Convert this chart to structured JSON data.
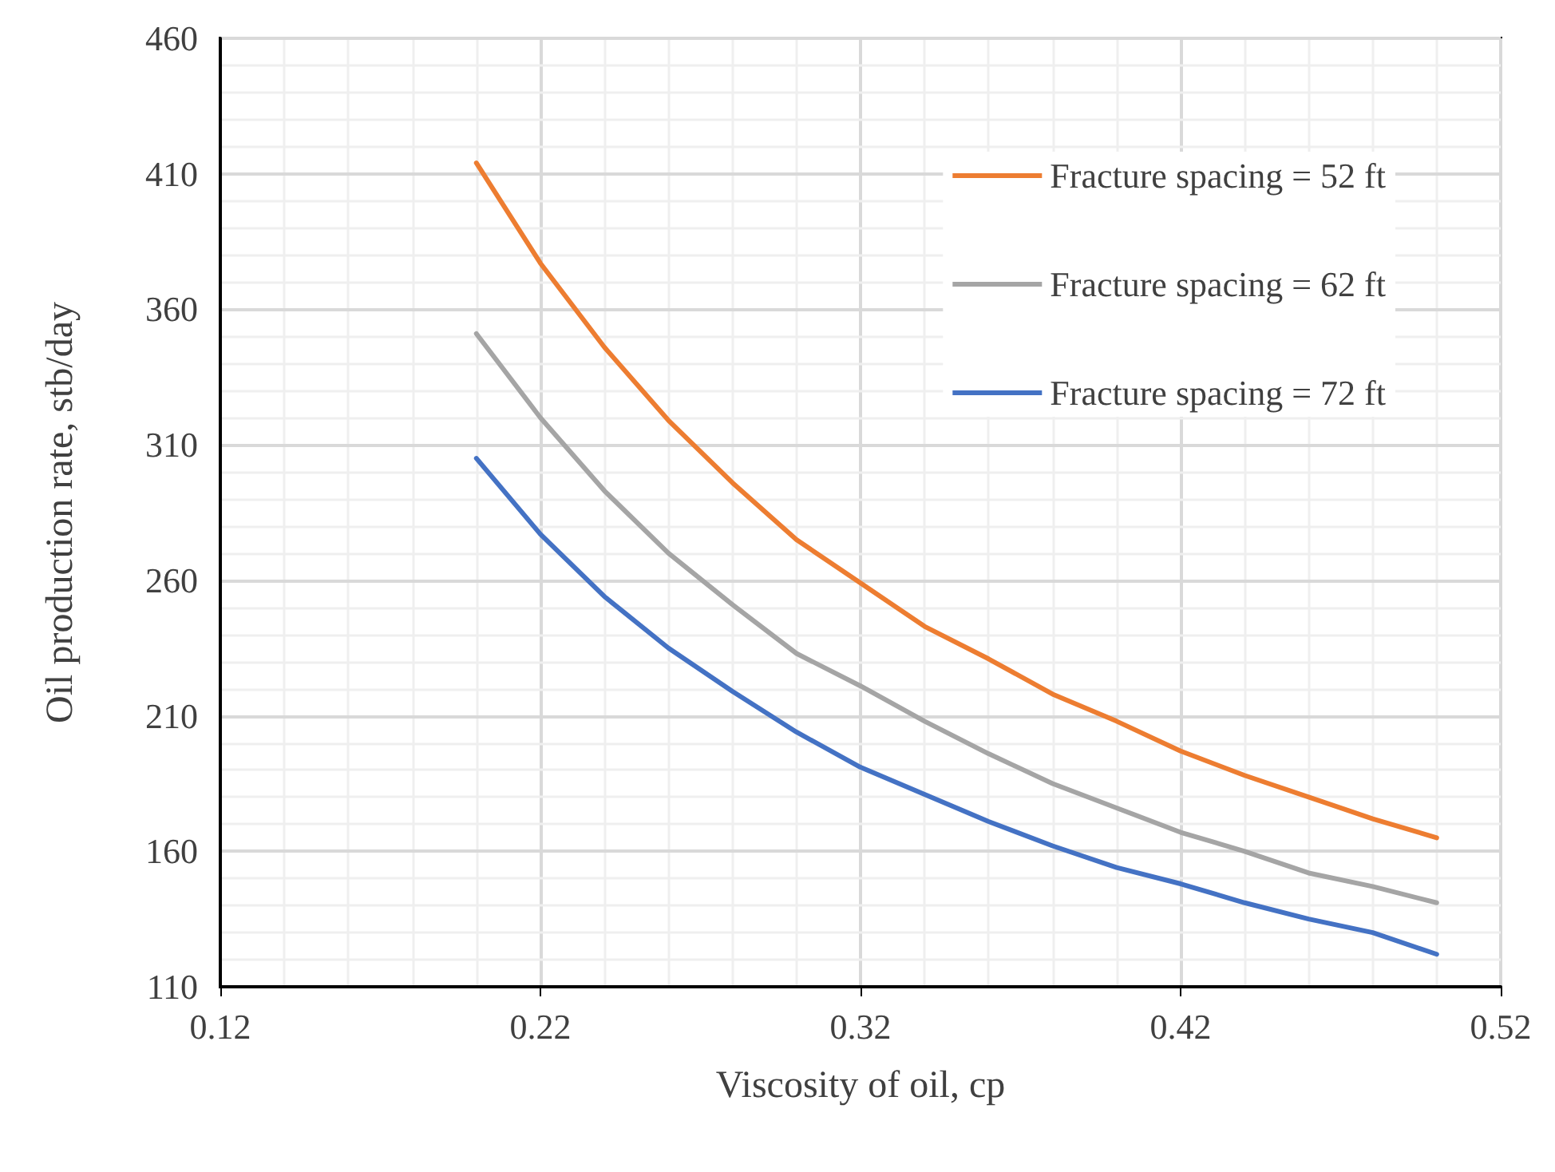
{
  "chart_data": {
    "type": "line",
    "xlabel": "Viscosity of oil, cp",
    "ylabel": "Oil production rate, stb/day",
    "x": [
      0.2,
      0.22,
      0.24,
      0.26,
      0.28,
      0.3,
      0.32,
      0.34,
      0.36,
      0.38,
      0.4,
      0.42,
      0.44,
      0.46,
      0.48,
      0.5
    ],
    "series": [
      {
        "name": "Fracture spacing = 52 ft",
        "color": "#ed7d31",
        "values": [
          414,
          377,
          346,
          319,
          296,
          275,
          259,
          243,
          231,
          218,
          208,
          197,
          188,
          180,
          172,
          165
        ]
      },
      {
        "name": "Fracture spacing = 62 ft",
        "color": "#a5a5a5",
        "values": [
          351,
          320,
          293,
          270,
          251,
          233,
          221,
          208,
          196,
          185,
          176,
          167,
          160,
          152,
          147,
          141
        ]
      },
      {
        "name": "Fracture spacing = 72 ft",
        "color": "#4472c4",
        "values": [
          305,
          277,
          254,
          235,
          219,
          204,
          191,
          181,
          171,
          162,
          154,
          148,
          141,
          135,
          130,
          122
        ]
      }
    ],
    "xlim": [
      0.12,
      0.52
    ],
    "xticks": [
      0.12,
      0.22,
      0.32,
      0.42,
      0.52
    ],
    "ylim": [
      110,
      460
    ],
    "yticks": [
      110,
      160,
      210,
      260,
      310,
      360,
      410,
      460
    ],
    "grid": true,
    "legend": "top right",
    "marker": "none",
    "line_style": "solid"
  }
}
